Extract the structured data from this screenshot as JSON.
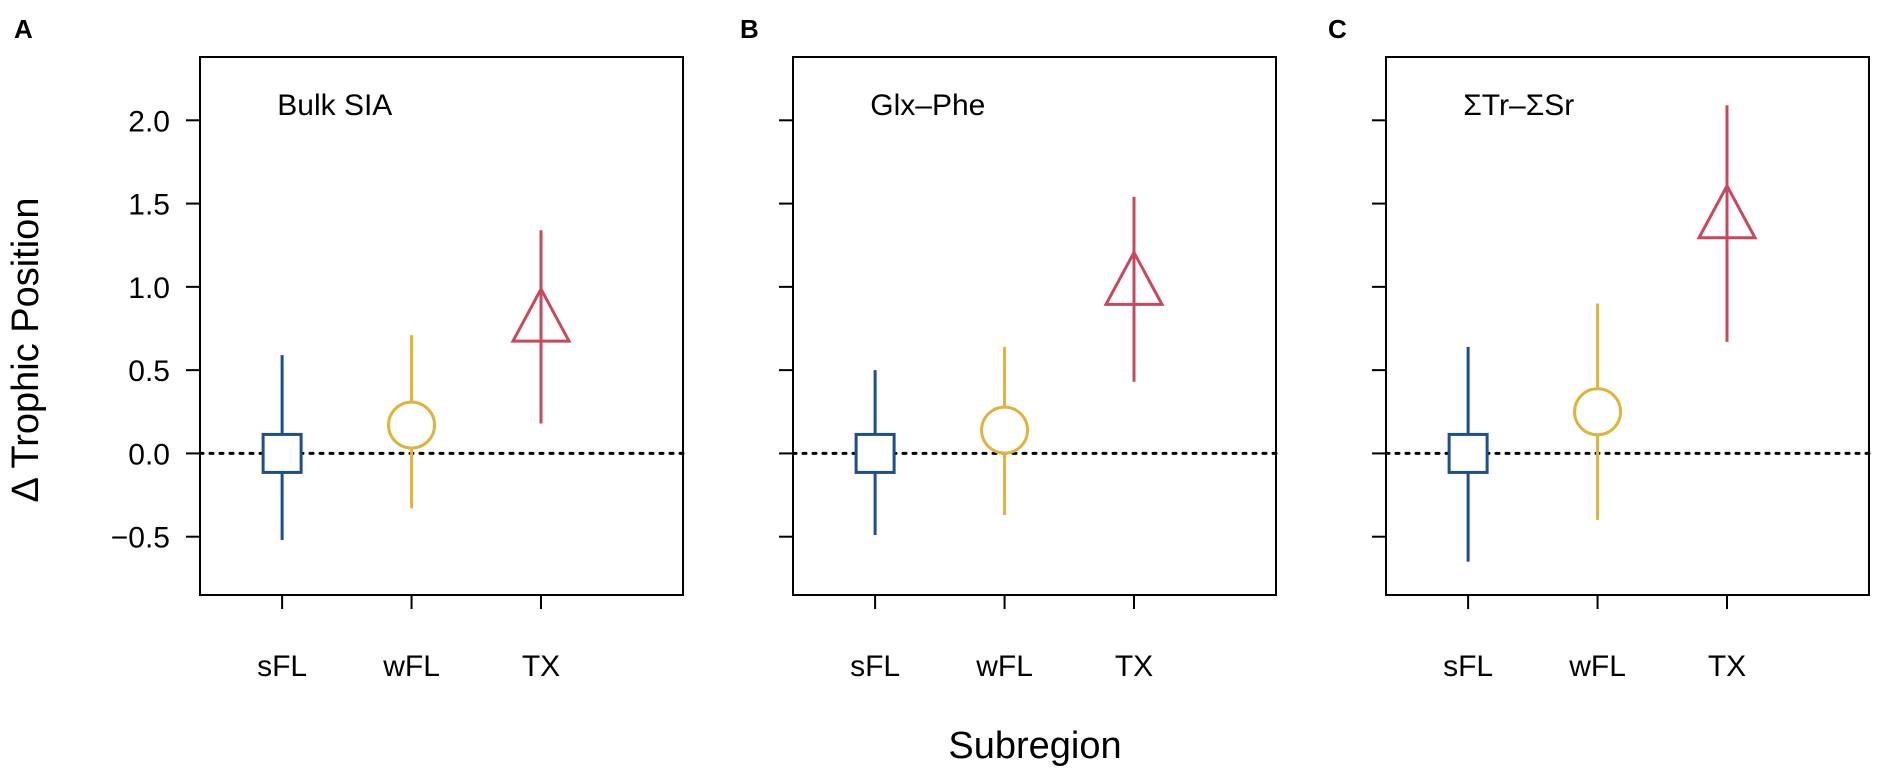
{
  "figure": {
    "ylabel": "Δ Trophic Position",
    "xlabel": "Subregion"
  },
  "chart_data": [
    {
      "type": "scatter",
      "panel": "A",
      "label": "Bulk SIA",
      "categories": [
        "sFL",
        "wFL",
        "TX"
      ],
      "values": [
        0.0,
        0.17,
        0.79
      ],
      "lower": [
        -0.52,
        -0.33,
        0.18
      ],
      "upper": [
        0.59,
        0.71,
        1.34
      ],
      "ylim": [
        -0.85,
        2.38
      ],
      "yticks": [
        -0.5,
        0.0,
        0.5,
        1.0,
        1.5,
        2.0
      ],
      "ytick_labels": [
        "−0.5",
        "0.0",
        "0.5",
        "1.0",
        "1.5",
        "2.0"
      ],
      "show_ytick_labels": true,
      "reference_line": 0,
      "colors": [
        "#1f4e8c",
        "#e0b43a",
        "#c8485e"
      ],
      "markers": [
        "square",
        "circle",
        "triangle"
      ]
    },
    {
      "type": "scatter",
      "panel": "B",
      "label": "Glx–Phe",
      "categories": [
        "sFL",
        "wFL",
        "TX"
      ],
      "values": [
        0.0,
        0.14,
        1.01
      ],
      "lower": [
        -0.49,
        -0.37,
        0.43
      ],
      "upper": [
        0.5,
        0.64,
        1.54
      ],
      "ylim": [
        -0.85,
        2.38
      ],
      "yticks": [
        -0.5,
        0.0,
        0.5,
        1.0,
        1.5,
        2.0
      ],
      "ytick_labels": [
        "−0.5",
        "0.0",
        "0.5",
        "1.0",
        "1.5",
        "2.0"
      ],
      "show_ytick_labels": false,
      "reference_line": 0,
      "colors": [
        "#1f4e8c",
        "#e0b43a",
        "#c8485e"
      ],
      "markers": [
        "square",
        "circle",
        "triangle"
      ]
    },
    {
      "type": "scatter",
      "panel": "C",
      "label": "ΣTr–ΣSr",
      "categories": [
        "sFL",
        "wFL",
        "TX"
      ],
      "values": [
        0.0,
        0.25,
        1.41
      ],
      "lower": [
        -0.65,
        -0.4,
        0.67
      ],
      "upper": [
        0.64,
        0.9,
        2.09
      ],
      "ylim": [
        -0.85,
        2.38
      ],
      "yticks": [
        -0.5,
        0.0,
        0.5,
        1.0,
        1.5,
        2.0
      ],
      "ytick_labels": [
        "−0.5",
        "0.0",
        "0.5",
        "1.0",
        "1.5",
        "2.0"
      ],
      "show_ytick_labels": false,
      "reference_line": 0,
      "colors": [
        "#1f4e8c",
        "#e0b43a",
        "#c8485e"
      ],
      "markers": [
        "square",
        "circle",
        "triangle"
      ]
    }
  ]
}
